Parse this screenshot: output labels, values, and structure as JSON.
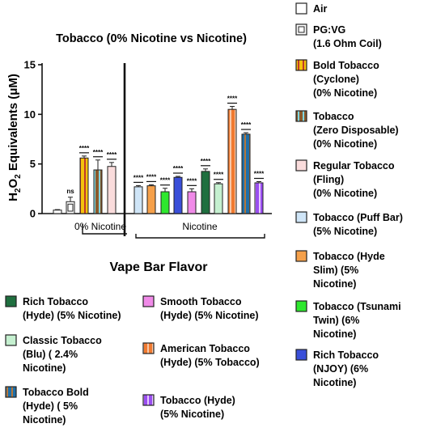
{
  "chart_data": {
    "type": "bar",
    "title": "Tobacco (0% Nicotine vs Nicotine)",
    "ylabel_parts": [
      "H",
      "2",
      "O",
      "2",
      " Equivalents (μM)"
    ],
    "xlabel": "Vape Bar Flavor",
    "ylim": [
      0,
      15
    ],
    "yticks": [
      "0",
      "5",
      "10",
      "15"
    ],
    "group_labels": [
      "0% Nicotine",
      "Nicotine"
    ],
    "series": [
      {
        "name": "Air",
        "value": 0.35,
        "error": 0.05,
        "sig": "",
        "color": "#ffffff",
        "pattern": "none",
        "stripe": ""
      },
      {
        "name": "PG:VG (1.6 Ohm Coil)",
        "value": 1.2,
        "error": 0.45,
        "sig": "ns",
        "color": "#ffffff",
        "pattern": "pgvg",
        "stripe": ""
      },
      {
        "name": "Bold Tobacco (Cyclone) (0% Nicotine)",
        "value": 5.6,
        "error": 0.2,
        "sig": "****",
        "color": "#f4c20d",
        "pattern": "stripe",
        "stripe": "#c0392b"
      },
      {
        "name": "Tobacco (Zero Disposable) (0% Nicotine)",
        "value": 4.4,
        "error": 1.0,
        "sig": "****",
        "color": "#8b5a2b",
        "pattern": "stripe",
        "stripe": "#7fd6e0"
      },
      {
        "name": "Regular Tobacco (Fling) (0% Nicotine)",
        "value": 4.75,
        "error": 0.4,
        "sig": "****",
        "color": "#fadcdc",
        "pattern": "none",
        "stripe": ""
      },
      {
        "name": "Tobacco (Puff Bar) (5% Nicotine)",
        "value": 2.7,
        "error": 0.12,
        "sig": "****",
        "color": "#cfe5f7",
        "pattern": "none",
        "stripe": ""
      },
      {
        "name": "Tobacco (Hyde Slim) (5% Nicotine)",
        "value": 2.8,
        "error": 0.1,
        "sig": "****",
        "color": "#f5a04a",
        "pattern": "none",
        "stripe": ""
      },
      {
        "name": "Tobacco (Tsunami Twin) (6% Nicotine)",
        "value": 2.2,
        "error": 0.35,
        "sig": "****",
        "color": "#2ee82e",
        "pattern": "none",
        "stripe": ""
      },
      {
        "name": "Rich Tobacco (NJOY) (6% Nicotine)",
        "value": 3.65,
        "error": 0.1,
        "sig": "****",
        "color": "#3a4fd9",
        "pattern": "none",
        "stripe": ""
      },
      {
        "name": "Smooth Tobacco (Hyde) (5% Nicotine)",
        "value": 2.2,
        "error": 0.3,
        "sig": "****",
        "color": "#f08ae8",
        "pattern": "none",
        "stripe": ""
      },
      {
        "name": "Rich Tobacco (Hyde) (5% Nicotine)",
        "value": 4.25,
        "error": 0.25,
        "sig": "****",
        "color": "#1f6f3f",
        "pattern": "none",
        "stripe": ""
      },
      {
        "name": "Classic Tobacco (Blu) ( 2.4% Nicotine)",
        "value": 3.0,
        "error": 0.12,
        "sig": "****",
        "color": "#c5f0d0",
        "pattern": "none",
        "stripe": ""
      },
      {
        "name": "American Tobacco (Hyde) (5% Tobacco)",
        "value": 10.5,
        "error": 0.3,
        "sig": "****",
        "color": "#f07a30",
        "pattern": "stripe",
        "stripe": "#f8c8a8"
      },
      {
        "name": "Tobacco Bold (Hyde) ( 5% Nicotine)",
        "value": 8.0,
        "error": 0.15,
        "sig": "****",
        "color": "#1f6fa8",
        "pattern": "stripe",
        "stripe": "#b5763a"
      },
      {
        "name": "Tobacco (Hyde) (5% Nicotine)",
        "value": 3.1,
        "error": 0.12,
        "sig": "****",
        "color": "#9a4ef0",
        "pattern": "stripe",
        "stripe": "#e6c8ff"
      }
    ],
    "legend_right": [
      {
        "lines": [
          "Air"
        ],
        "series": 0
      },
      {
        "lines": [
          "PG:VG",
          "(1.6 Ohm Coil)"
        ],
        "series": 1
      },
      {
        "lines": [
          "Bold Tobacco",
          "(Cyclone)",
          "(0% Nicotine)"
        ],
        "series": 2
      },
      {
        "lines": [
          "Tobacco",
          "(Zero Disposable)",
          "(0% Nicotine)"
        ],
        "series": 3
      },
      {
        "lines": [
          "Regular Tobacco",
          "(Fling)",
          "(0% Nicotine)"
        ],
        "series": 4
      },
      {
        "lines": [
          "Tobacco (Puff Bar)",
          "(5% Nicotine)"
        ],
        "series": 5
      },
      {
        "lines": [
          "Tobacco (Hyde",
          "Slim) (5%",
          "Nicotine)"
        ],
        "series": 6
      },
      {
        "lines": [
          "Tobacco (Tsunami",
          "Twin) (6%",
          "Nicotine)"
        ],
        "series": 7
      },
      {
        "lines": [
          "Rich Tobacco",
          "(NJOY) (6%",
          "Nicotine)"
        ],
        "series": 8
      }
    ],
    "legend_bottom": [
      {
        "lines": [
          "Rich Tobacco",
          "(Hyde) (5% Nicotine)"
        ],
        "series": 10
      },
      {
        "lines": [
          "Classic Tobacco",
          "(Blu) ( 2.4%",
          "Nicotine)"
        ],
        "series": 11
      },
      {
        "lines": [
          "Tobacco Bold",
          "(Hyde) ( 5%",
          "Nicotine)"
        ],
        "series": 13
      },
      {
        "lines": [
          "Smooth Tobacco",
          "(Hyde) (5% Nicotine)"
        ],
        "series": 9
      },
      {
        "lines": [
          "American Tobacco",
          "(Hyde) (5% Tobacco)"
        ],
        "series": 12
      },
      {
        "lines": [
          "Tobacco (Hyde)",
          "(5% Nicotine)"
        ],
        "series": 14
      }
    ]
  }
}
